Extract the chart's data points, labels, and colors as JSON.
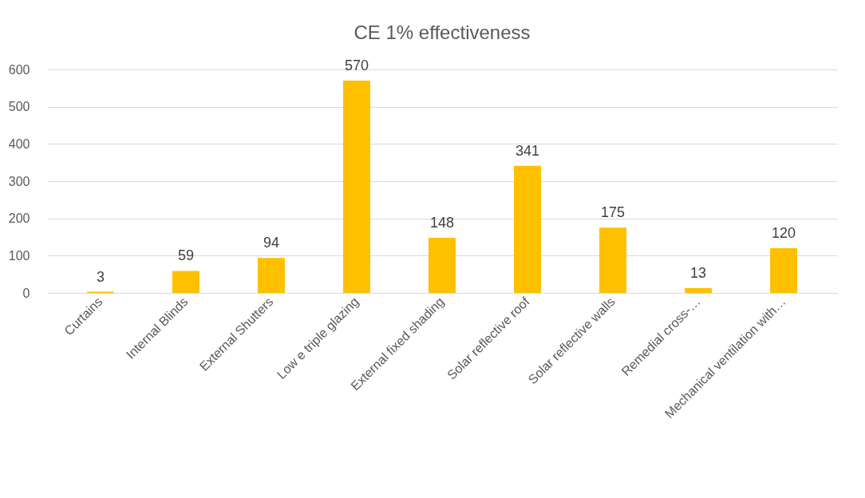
{
  "chart_data": {
    "type": "bar",
    "title": "CE 1% effectiveness",
    "categories": [
      "Curtains",
      "Internal Blinds",
      "External Shutters",
      "Low e triple glazing",
      "External fixed shading",
      "Solar reflective roof",
      "Solar reflective walls",
      "Remedial cross-…",
      "Mechanical ventilation with…"
    ],
    "values": [
      3,
      59,
      94,
      570,
      148,
      341,
      175,
      13,
      120
    ],
    "color": "#ffc000",
    "ylim": [
      0,
      600
    ],
    "yticks": [
      0,
      100,
      200,
      300,
      400,
      500,
      600
    ],
    "grid": "y",
    "data_labels": true
  }
}
